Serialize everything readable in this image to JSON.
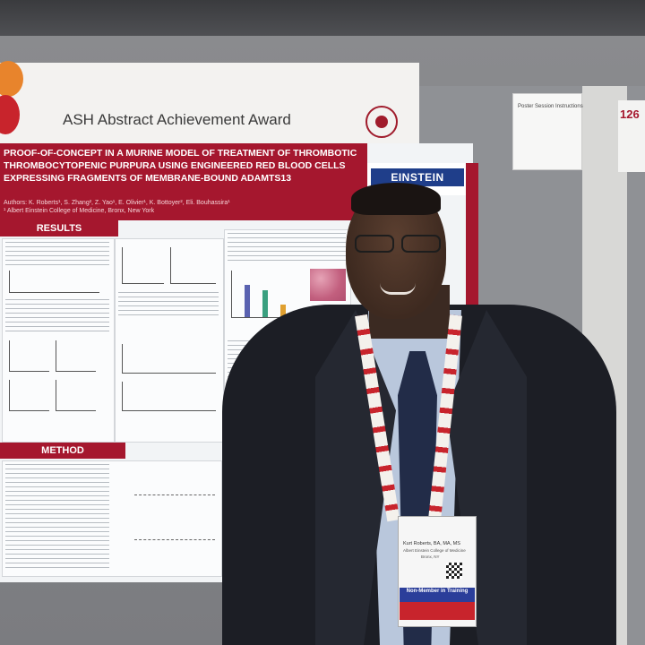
{
  "award": {
    "title": "ASH Abstract Achievement Award"
  },
  "poster": {
    "title": "Proof-of-concept in a murine model of treatment of thrombotic thrombocytopenic purpura using engineered red blood cells expressing fragments of membrane-bound ADAMTS13",
    "authors": "Authors: K. Roberts¹, S. Zhang², Z. Yao¹, E. Olivier¹, K. Bottoyer², Eli. Bouhassira¹",
    "institution": "¹ Albert Einstein College of Medicine, Bronx, New York",
    "logo": "EINSTEIN",
    "sections": [
      "RESULTS",
      "METHOD"
    ]
  },
  "side_sign": {
    "title": "Poster Session Instructions",
    "number": "126"
  },
  "badge": {
    "name": "Kurt Roberts, BA, MA, MS",
    "institution_line1": "Albert Einstein College of Medicine",
    "institution_line2": "Bronx, NY",
    "category": "Non-Member in Training"
  },
  "colors": {
    "poster_red": "#a5172e",
    "einstein_blue": "#1f3e8a",
    "badge_blue": "#2b3e9a"
  }
}
